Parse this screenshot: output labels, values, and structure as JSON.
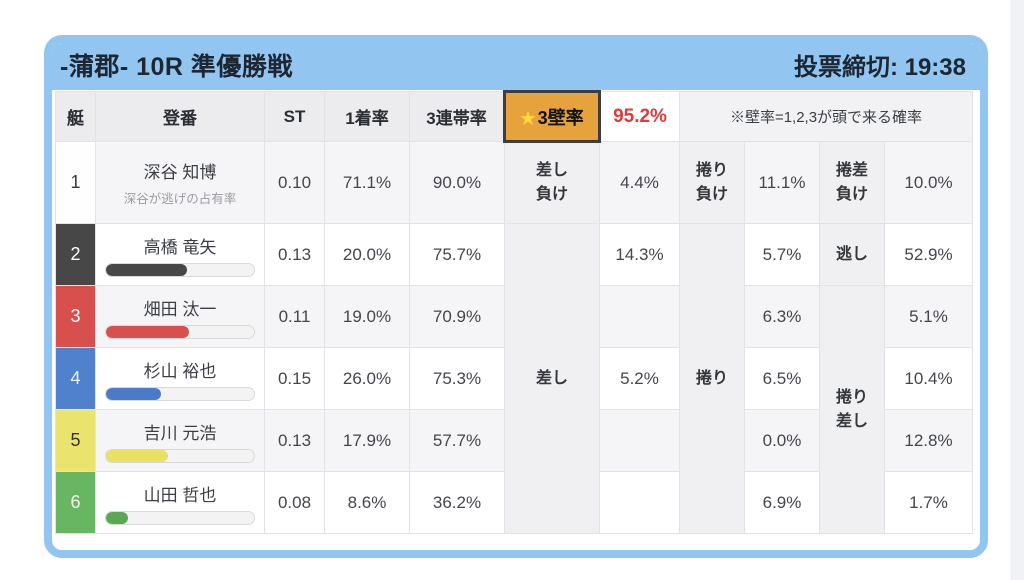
{
  "header": {
    "title": "-蒲郡- 10R 準優勝戦",
    "deadline": "投票締切: 19:38"
  },
  "table": {
    "headers": {
      "boat": "艇",
      "racer": "登番",
      "st": "ST",
      "win_rate": "1着率",
      "top3_rate": "3連帯率",
      "wall_star": "★",
      "wall_label": "3壁率",
      "wall_value": "95.2%",
      "note": "※壁率=1,2,3が頭で来る確率"
    },
    "tactic_labels": {
      "row1_sashi": "差し\n負け",
      "row1_makuri": "捲り\n負け",
      "row1_makurizashi": "捲差\n負け",
      "merged_sashi": "差し",
      "merged_makuri": "捲り",
      "nogashi": "逃し",
      "merged_makurizashi": "捲り\n差し"
    },
    "rows": [
      {
        "boat": "1",
        "name": "深谷 知博",
        "subtitle": "深谷が逃げの占有率",
        "st": "0.10",
        "win_rate": "71.1%",
        "top3_rate": "90.0%",
        "sashi": "4.4%",
        "makuri": "11.1%",
        "makurizashi": "10.0%"
      },
      {
        "boat": "2",
        "name": "高橋 竜矢",
        "bar_pct": 55,
        "st": "0.13",
        "win_rate": "20.0%",
        "top3_rate": "75.7%",
        "sashi": "14.3%",
        "makuri": "5.7%",
        "nogashi": "52.9%"
      },
      {
        "boat": "3",
        "name": "畑田 汰一",
        "bar_pct": 56,
        "st": "0.11",
        "win_rate": "19.0%",
        "top3_rate": "70.9%",
        "sashi": "",
        "makuri": "6.3%",
        "makurizashi": "5.1%"
      },
      {
        "boat": "4",
        "name": "杉山 裕也",
        "bar_pct": 37,
        "st": "0.15",
        "win_rate": "26.0%",
        "top3_rate": "75.3%",
        "sashi": "5.2%",
        "makuri": "6.5%",
        "makurizashi": "10.4%"
      },
      {
        "boat": "5",
        "name": "吉川 元浩",
        "bar_pct": 42,
        "st": "0.13",
        "win_rate": "17.9%",
        "top3_rate": "57.7%",
        "sashi": "",
        "makuri": "0.0%",
        "makurizashi": "12.8%"
      },
      {
        "boat": "6",
        "name": "山田 哲也",
        "bar_pct": 15,
        "st": "0.08",
        "win_rate": "8.6%",
        "top3_rate": "36.2%",
        "sashi": "",
        "makuri": "6.9%",
        "makurizashi": "1.7%"
      }
    ]
  },
  "colors": {
    "header_blue": "#92c5ef",
    "wall_header_bg": "#e6a23c",
    "wall_value_red": "#e03a3a",
    "boats": [
      {
        "bg": "#fefefe",
        "text": "#3a3a3a",
        "bar": "#ffffff"
      },
      {
        "bg": "#474747",
        "text": "#ffffff",
        "bar": "#474747"
      },
      {
        "bg": "#d8504d",
        "text": "#ffffff",
        "bar": "#d8504d"
      },
      {
        "bg": "#4f81cc",
        "text": "#edf2fb",
        "bar": "#4a7bc8"
      },
      {
        "bg": "#eae46e",
        "text": "#333333",
        "bar": "#e8e162"
      },
      {
        "bg": "#68b562",
        "text": "#f2f9f1",
        "bar": "#5aa854"
      }
    ]
  }
}
